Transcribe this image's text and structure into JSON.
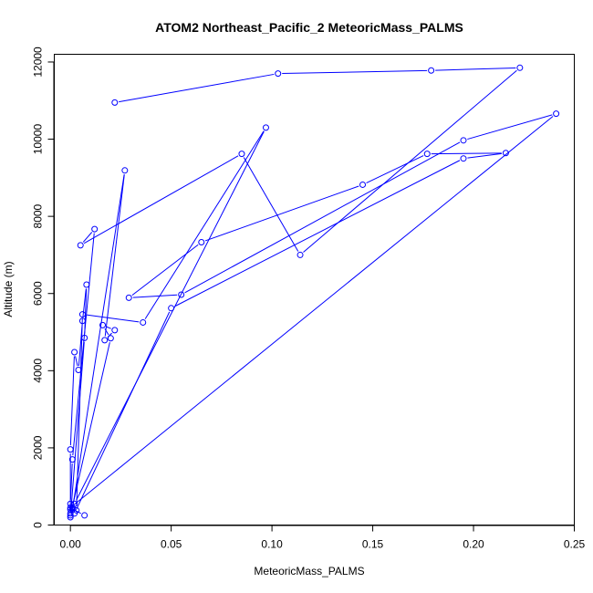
{
  "chart_data": {
    "type": "line",
    "title": "ATOM2 Northeast_Pacific_2 MeteoricMass_PALMS",
    "xlabel": "MeteoricMass_PALMS",
    "ylabel": "Altitude (m)",
    "xlim": [
      -0.008,
      0.25
    ],
    "ylim": [
      0,
      12200
    ],
    "xticks": [
      0,
      0.05,
      0.1,
      0.15,
      0.2,
      0.25
    ],
    "xtick_labels": [
      "0.00",
      "0.05",
      "0.10",
      "0.15",
      "0.20",
      "0.25"
    ],
    "yticks": [
      0,
      2000,
      4000,
      6000,
      8000,
      10000,
      12000
    ],
    "ytick_labels": [
      "0",
      "2000",
      "4000",
      "6000",
      "8000",
      "10000",
      "12000"
    ],
    "grid": false,
    "line_color": "#0000ff",
    "marker": "open-circle",
    "series": [
      {
        "x": [
          0.022,
          0.103,
          0.179,
          0.223,
          0.114,
          0.085,
          0.005,
          0.012,
          0.001,
          0.0,
          0.0,
          0.0,
          0.002,
          0.004,
          0.006,
          0.008,
          0.007,
          0.0,
          0.001,
          0.027,
          0.017,
          0.022,
          0.016,
          0.02,
          0.0,
          0.001,
          0.003,
          0.006,
          0.036,
          0.097,
          0.002,
          0.0,
          0.002,
          0.05,
          0.195,
          0.216,
          0.177,
          0.145,
          0.065,
          0.029,
          0.055,
          0.195,
          0.241,
          0.0,
          0.007
        ],
        "y": [
          10950,
          11700,
          11780,
          11850,
          7000,
          9620,
          7250,
          7670,
          1700,
          550,
          300,
          1960,
          4480,
          4020,
          5290,
          6230,
          4850,
          200,
          400,
          9190,
          4790,
          5050,
          5180,
          4840,
          250,
          450,
          380,
          5460,
          5250,
          10300,
          550,
          400,
          300,
          5620,
          9500,
          9640,
          9620,
          8820,
          7330,
          5890,
          5970,
          9970,
          10660,
          450,
          250
        ]
      }
    ]
  }
}
